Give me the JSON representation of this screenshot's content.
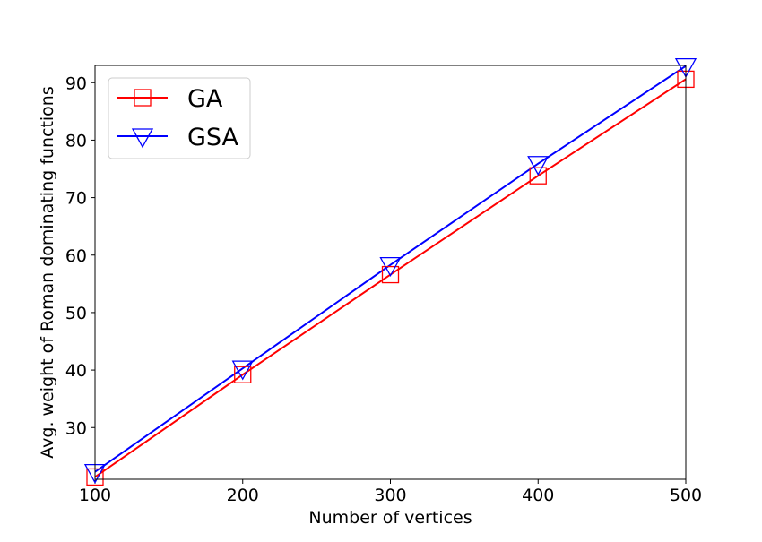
{
  "chart_data": {
    "type": "line",
    "xlabel": "Number of vertices",
    "ylabel": "Avg. weight of Roman dominating functions",
    "x": [
      100,
      200,
      300,
      400,
      500
    ],
    "xlim": [
      100,
      500
    ],
    "ylim": [
      21,
      93
    ],
    "xticks": [
      "100",
      "200",
      "300",
      "400",
      "500"
    ],
    "yticks": [
      "30",
      "40",
      "50",
      "60",
      "70",
      "80",
      "90"
    ],
    "grid": false,
    "legend_position": "top-left",
    "series": [
      {
        "name": "GA",
        "color": "#ff0000",
        "marker": "square",
        "values": [
          21.4,
          39.2,
          56.6,
          73.8,
          90.6
        ]
      },
      {
        "name": "GSA",
        "color": "#0000ff",
        "marker": "triangle-down",
        "values": [
          22.3,
          40.3,
          58.3,
          75.9,
          92.9
        ]
      }
    ]
  }
}
